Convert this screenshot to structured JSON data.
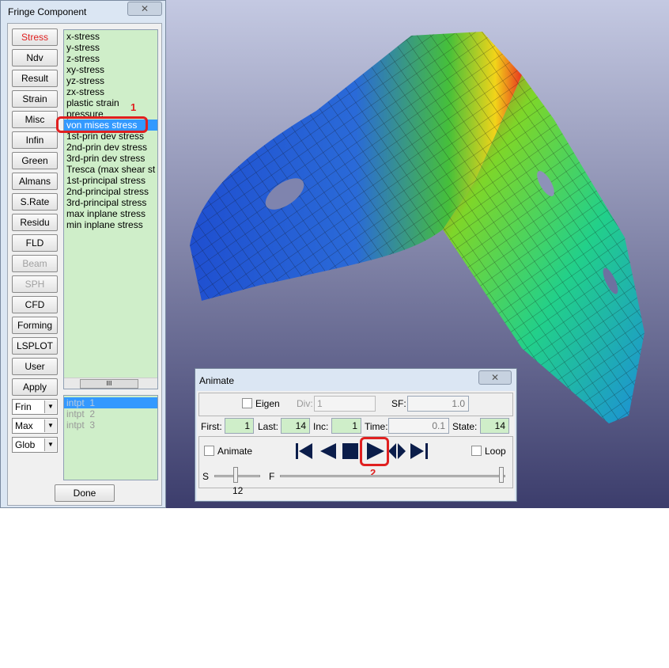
{
  "fringe_window": {
    "title": "Fringe Component",
    "buttons": [
      "Stress",
      "Ndv",
      "Result",
      "Strain",
      "Misc",
      "Infin",
      "Green",
      "Almans",
      "S.Rate",
      "Residu",
      "FLD",
      "Beam",
      "SPH",
      "CFD",
      "Forming",
      "LSPLOT",
      "User",
      "Apply"
    ],
    "component_list": [
      "x-stress",
      "y-stress",
      "z-stress",
      "xy-stress",
      "yz-stress",
      "zx-stress",
      "plastic strain",
      "pressure",
      "von mises stress",
      "1st-prin dev stress",
      "2nd-prin dev stress",
      "3rd-prin dev stress",
      "Tresca (max shear st",
      "1st-principal stress",
      "2nd-principal stress",
      "3rd-principal stress",
      "max inplane stress",
      "min inplane stress"
    ],
    "annotation": "1",
    "dropdowns": [
      "Frin",
      "Max",
      "Glob"
    ],
    "point_list": [
      "intpt  1",
      "intpt  2",
      "intpt  3"
    ],
    "done": "Done"
  },
  "animate_window": {
    "title": "Animate",
    "eigen": "Eigen",
    "div_label": "Div:",
    "div_value": "1",
    "sf_label": "SF:",
    "sf_value": "1.0",
    "first_label": "First:",
    "first_value": "1",
    "last_label": "Last:",
    "last_value": "14",
    "inc_label": "Inc:",
    "inc_value": "1",
    "time_label": "Time:",
    "time_value": "0.1",
    "state_label": "State:",
    "state_value": "14",
    "animate": "Animate",
    "loop": "Loop",
    "slider_start": "S",
    "slider_end": "F",
    "slider_value": "12",
    "annotation": "2"
  }
}
